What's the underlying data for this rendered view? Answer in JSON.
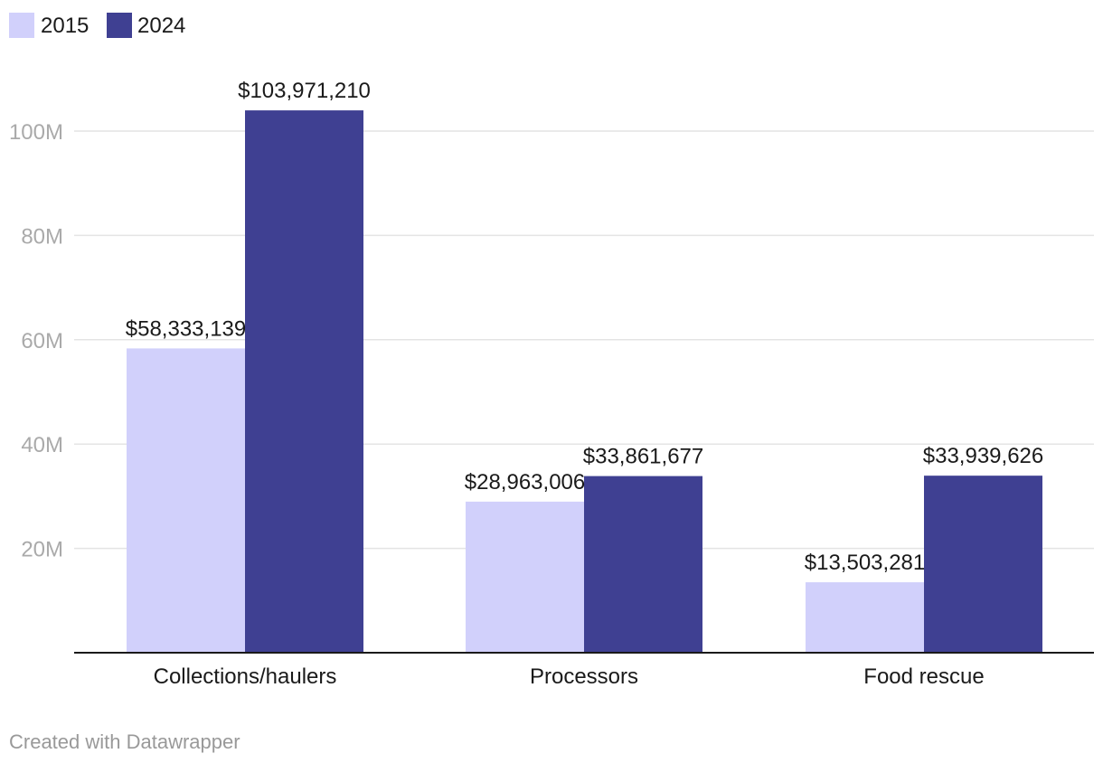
{
  "chart_data": {
    "type": "bar",
    "categories": [
      "Collections/haulers",
      "Processors",
      "Food rescue"
    ],
    "series": [
      {
        "name": "2015",
        "color": "#d1d0fb",
        "values": [
          58333139,
          28963006,
          13503281
        ],
        "labels": [
          "$58,333,139",
          "$28,963,006",
          "$13,503,281"
        ]
      },
      {
        "name": "2024",
        "color": "#3f4092",
        "values": [
          103971210,
          33861677,
          33939626
        ],
        "labels": [
          "$103,971,210",
          "$33,861,677",
          "$33,939,626"
        ]
      }
    ],
    "y_ticks": [
      20000000,
      40000000,
      60000000,
      80000000,
      100000000
    ],
    "y_tick_labels": [
      "20M",
      "40M",
      "60M",
      "80M",
      "100M"
    ],
    "ylim": [
      0,
      110000000
    ],
    "grid": true,
    "legend_position": "top-left",
    "title": "",
    "xlabel": "",
    "ylabel": ""
  },
  "footer": {
    "credit": "Created with Datawrapper"
  }
}
